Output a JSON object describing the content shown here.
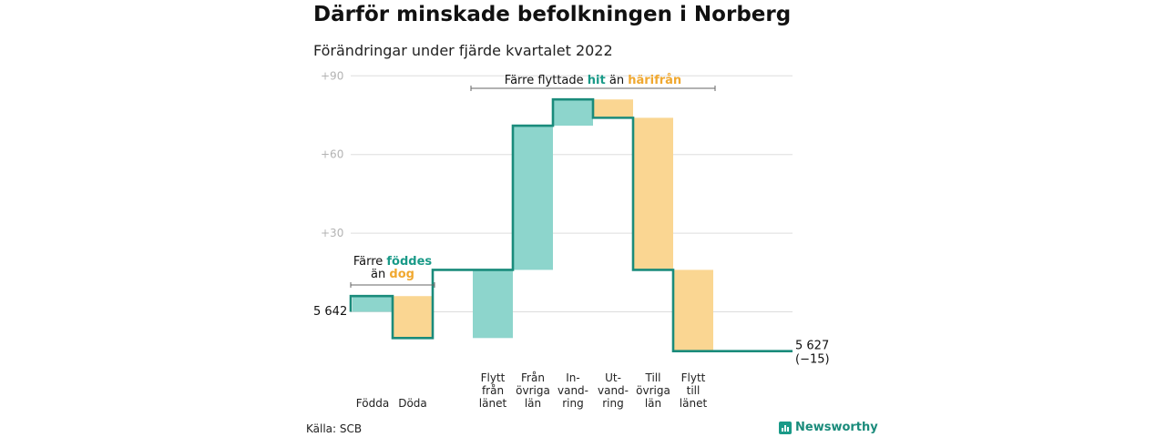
{
  "title": "Därför minskade befolkningen i Norberg",
  "subtitle": "Förändringar under fjärde kvartalet 2022",
  "source": "Källa: SCB",
  "brand": "Newsworthy",
  "colors": {
    "positive": "#8dd5cc",
    "negative": "#fad692",
    "line": "#1a8b7b",
    "grid": "#dddddd",
    "hl_teal": "#1a9a88",
    "hl_orange": "#f0a830"
  },
  "annotations": {
    "births": {
      "line1": "Färre ",
      "word1": "föddes",
      "line2a": "än ",
      "word2": "dog"
    },
    "migration": {
      "text1": "Färre flyttade ",
      "word1": "hit",
      "text2": " än ",
      "word2": "härifrån"
    }
  },
  "start_label": "5 642",
  "end_label": "5 627",
  "end_change": "(−15)",
  "chart_data": {
    "type": "waterfall",
    "title": "Därför minskade befolkningen i Norberg",
    "subtitle": "Förändringar under fjärde kvartalet 2022",
    "start_value": 5642,
    "end_value": 5627,
    "net_change": -15,
    "y_axis": {
      "min": -15,
      "max": 90,
      "ticks": [
        30,
        60,
        90
      ],
      "tick_labels": [
        "+30",
        "+60",
        "+90"
      ]
    },
    "categories": [
      {
        "label": [
          "Födda"
        ],
        "value": 6
      },
      {
        "label": [
          "Döda"
        ],
        "value": -16
      },
      {
        "label": [
          "Flytt",
          "från",
          "länet"
        ],
        "value": 26
      },
      {
        "label": [
          "Från",
          "övriga",
          "län"
        ],
        "value": 55
      },
      {
        "label": [
          "In-",
          "vand-",
          "ring"
        ],
        "value": 10
      },
      {
        "label": [
          "Ut-",
          "vand-",
          "ring"
        ],
        "value": -7
      },
      {
        "label": [
          "Till",
          "övriga",
          "län"
        ],
        "value": -58
      },
      {
        "label": [
          "Flytt",
          "till",
          "länet"
        ],
        "value": -31
      }
    ]
  }
}
